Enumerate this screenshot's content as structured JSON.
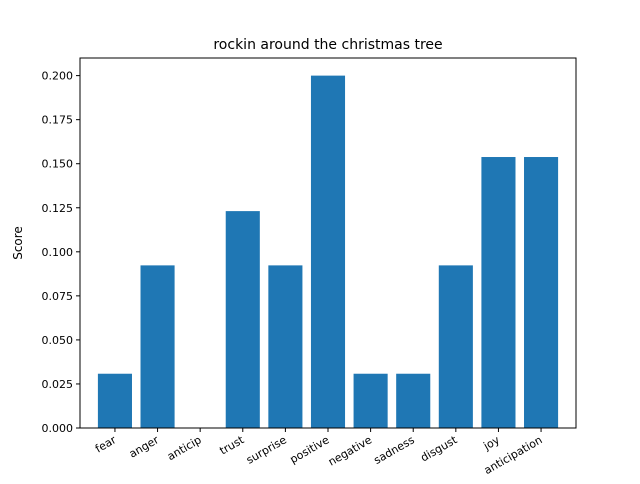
{
  "chart_data": {
    "type": "bar",
    "title": "rockin around the christmas tree",
    "xlabel": "",
    "ylabel": "Score",
    "categories": [
      "fear",
      "anger",
      "anticip",
      "trust",
      "surprise",
      "positive",
      "negative",
      "sadness",
      "disgust",
      "joy",
      "anticipation"
    ],
    "values": [
      0.0308,
      0.0923,
      0.0,
      0.1231,
      0.0923,
      0.2,
      0.0308,
      0.0308,
      0.0923,
      0.1538,
      0.1538
    ],
    "ylim": [
      0,
      0.21
    ],
    "yticks": [
      "0.000",
      "0.025",
      "0.050",
      "0.075",
      "0.100",
      "0.125",
      "0.150",
      "0.175",
      "0.200"
    ],
    "bar_color": "#1f77b4",
    "grid": false,
    "legend": "none"
  }
}
